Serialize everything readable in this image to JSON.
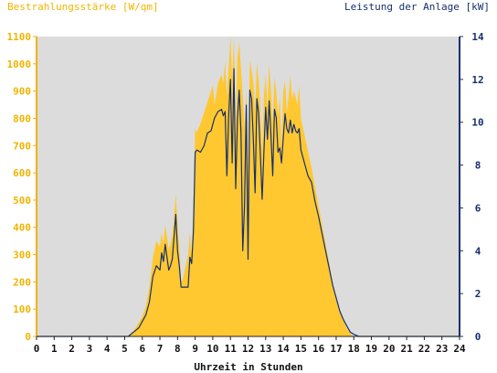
{
  "chart_data": {
    "type": "area",
    "left_axis_label": "Bestrahlungsstärke [W/qm]",
    "right_axis_label": "Leistung der Anlage [kW]",
    "xlabel": "Uhrzeit in Stunden",
    "x_ticks": [
      "0",
      "1",
      "2",
      "3",
      "4",
      "5",
      "6",
      "7",
      "8",
      "9",
      "10",
      "11",
      "12",
      "13",
      "14",
      "15",
      "16",
      "17",
      "18",
      "19",
      "20",
      "21",
      "22",
      "23",
      "24"
    ],
    "left_ticks": [
      "0",
      "100",
      "200",
      "300",
      "400",
      "500",
      "600",
      "700",
      "800",
      "900",
      "1000",
      "1100"
    ],
    "right_ticks": [
      "0",
      "2",
      "4",
      "6",
      "8",
      "10",
      "12",
      "14"
    ],
    "xlim": [
      0,
      24
    ],
    "ylim_left": [
      0,
      1100
    ],
    "ylim_right": [
      0,
      14
    ],
    "grid": false,
    "colors": {
      "irradiance": "#ffc830",
      "power": "#16306e",
      "plot_background": "#dcdcdc",
      "left_axis": "#f0b400",
      "right_axis": "#16306e"
    },
    "series": [
      {
        "axis": "left",
        "style": "area",
        "x": [
          0,
          5.2,
          5.5,
          5.8,
          6.0,
          6.2,
          6.4,
          6.6,
          6.8,
          7.0,
          7.1,
          7.2,
          7.3,
          7.5,
          7.6,
          7.7,
          7.8,
          7.9,
          8.0,
          8.1,
          8.2,
          8.3,
          8.4,
          8.6,
          8.7,
          8.8,
          8.9,
          9.0,
          9.1,
          9.3,
          9.5,
          9.7,
          9.9,
          10.0,
          10.1,
          10.3,
          10.5,
          10.6,
          10.7,
          10.8,
          10.9,
          11.0,
          11.1,
          11.2,
          11.3,
          11.4,
          11.5,
          11.6,
          11.7,
          11.8,
          11.9,
          12.0,
          12.1,
          12.2,
          12.3,
          12.4,
          12.5,
          12.6,
          12.7,
          12.8,
          12.9,
          13.0,
          13.1,
          13.2,
          13.3,
          13.4,
          13.5,
          13.6,
          13.7,
          13.8,
          13.9,
          14.0,
          14.1,
          14.2,
          14.3,
          14.4,
          14.5,
          14.6,
          14.7,
          14.8,
          14.9,
          15.0,
          15.2,
          15.4,
          15.6,
          15.8,
          16.0,
          16.2,
          16.4,
          16.6,
          16.8,
          17.0,
          17.2,
          17.4,
          17.6,
          17.8,
          18.0,
          18.3,
          18.6,
          18.9,
          19.2,
          19.5,
          19.8,
          20.0,
          20.2,
          20.4,
          24
        ],
        "values": [
          0,
          0,
          20,
          50,
          75,
          110,
          180,
          290,
          350,
          330,
          380,
          340,
          410,
          320,
          340,
          370,
          440,
          520,
          410,
          330,
          200,
          210,
          240,
          300,
          380,
          300,
          480,
          760,
          750,
          780,
          820,
          860,
          900,
          920,
          850,
          930,
          960,
          930,
          1010,
          880,
          980,
          1100,
          940,
          1100,
          760,
          1020,
          1080,
          980,
          880,
          760,
          900,
          600,
          1010,
          980,
          930,
          820,
          1000,
          940,
          840,
          660,
          880,
          960,
          840,
          1000,
          900,
          780,
          950,
          900,
          810,
          880,
          690,
          900,
          940,
          820,
          880,
          960,
          870,
          900,
          880,
          850,
          920,
          800,
          740,
          680,
          620,
          550,
          480,
          410,
          340,
          270,
          200,
          140,
          100,
          60,
          30,
          10,
          0,
          0,
          0,
          0,
          0,
          0,
          0,
          0,
          0,
          0,
          0
        ]
      },
      {
        "axis": "right",
        "style": "line",
        "x": [
          0,
          5.2,
          5.5,
          5.8,
          6.0,
          6.2,
          6.4,
          6.6,
          6.8,
          7.0,
          7.1,
          7.2,
          7.3,
          7.5,
          7.6,
          7.7,
          7.8,
          7.9,
          8.0,
          8.1,
          8.2,
          8.3,
          8.4,
          8.6,
          8.7,
          8.8,
          8.9,
          9.0,
          9.1,
          9.3,
          9.5,
          9.7,
          9.9,
          10.0,
          10.1,
          10.3,
          10.5,
          10.6,
          10.7,
          10.8,
          10.9,
          11.0,
          11.1,
          11.2,
          11.3,
          11.4,
          11.5,
          11.6,
          11.7,
          11.8,
          11.9,
          12.0,
          12.1,
          12.2,
          12.3,
          12.4,
          12.5,
          12.6,
          12.7,
          12.8,
          12.9,
          13.0,
          13.1,
          13.2,
          13.3,
          13.4,
          13.5,
          13.6,
          13.7,
          13.8,
          13.9,
          14.0,
          14.1,
          14.2,
          14.3,
          14.4,
          14.5,
          14.6,
          14.7,
          14.8,
          14.9,
          15.0,
          15.2,
          15.4,
          15.6,
          15.8,
          16.0,
          16.2,
          16.4,
          16.6,
          16.8,
          17.0,
          17.2,
          17.4,
          17.6,
          17.8,
          18.0,
          18.3,
          18.6,
          18.9,
          19.2,
          19.5,
          19.8,
          20.0,
          20.2,
          20.4,
          24
        ],
        "values": [
          0,
          0,
          0.2,
          0.4,
          0.7,
          1.0,
          1.6,
          2.8,
          3.3,
          3.1,
          3.9,
          3.5,
          4.3,
          3.1,
          3.3,
          3.6,
          4.6,
          5.7,
          4.0,
          3.3,
          2.3,
          2.3,
          2.3,
          2.3,
          3.7,
          3.4,
          4.9,
          8.6,
          8.7,
          8.6,
          8.9,
          9.5,
          9.6,
          9.9,
          10.2,
          10.5,
          10.6,
          10.3,
          10.5,
          7.5,
          10.3,
          12.0,
          8.1,
          12.5,
          6.9,
          10.2,
          11.5,
          9.5,
          4.0,
          6.1,
          10.8,
          3.6,
          11.5,
          11.1,
          9.2,
          6.7,
          11.1,
          10.4,
          8.5,
          6.4,
          8.6,
          10.7,
          9.2,
          11.0,
          9.4,
          7.5,
          10.6,
          10.2,
          8.6,
          8.8,
          8.1,
          9.3,
          10.4,
          9.7,
          9.5,
          10.1,
          9.5,
          9.9,
          9.6,
          9.5,
          9.7,
          8.7,
          8.1,
          7.5,
          7.2,
          6.3,
          5.6,
          4.8,
          4.0,
          3.2,
          2.4,
          1.8,
          1.2,
          0.8,
          0.5,
          0.2,
          0.1,
          0,
          0,
          0,
          0,
          0,
          0,
          0,
          0,
          0,
          0
        ]
      }
    ]
  }
}
